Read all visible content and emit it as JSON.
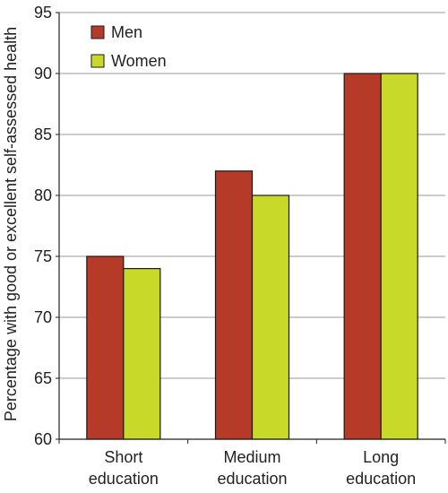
{
  "chart_data": {
    "type": "bar",
    "title": "",
    "ylabel": "Percentage with good or excellent self-assessed health",
    "xlabel": "",
    "ylim": [
      60,
      95
    ],
    "yticks": [
      "60",
      "65",
      "70",
      "75",
      "80",
      "85",
      "90",
      "95"
    ],
    "categories": [
      [
        "Short",
        "education"
      ],
      [
        "Medium",
        "education"
      ],
      [
        "Long",
        "education"
      ]
    ],
    "series": [
      {
        "name": "Men",
        "color": "#b53a28",
        "values": [
          75,
          82,
          90
        ]
      },
      {
        "name": "Women",
        "color": "#c8d92a",
        "values": [
          74,
          80,
          90
        ]
      }
    ],
    "grid": true,
    "legend_position": "top-left"
  }
}
